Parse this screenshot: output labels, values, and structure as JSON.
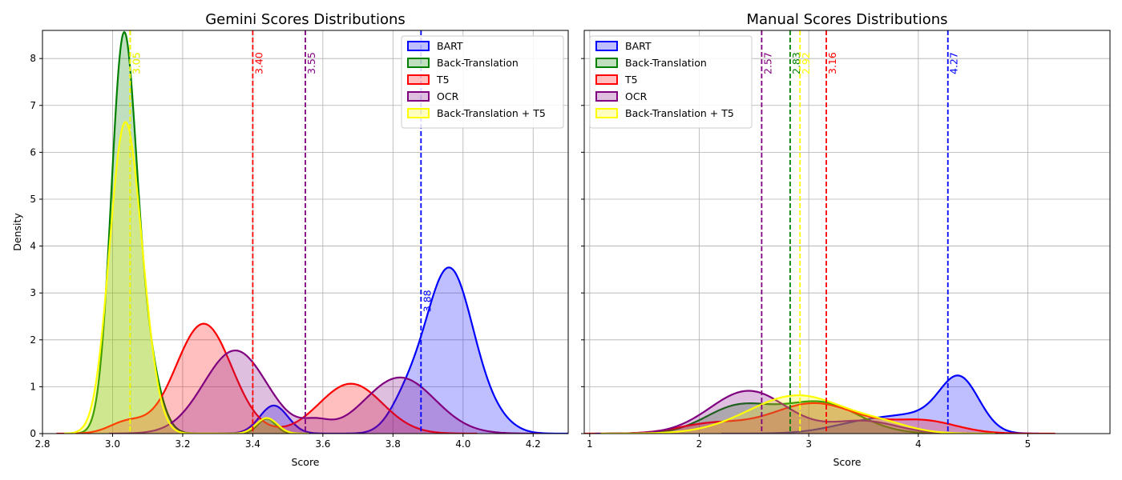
{
  "chart_data": [
    {
      "type": "area",
      "title": "Gemini Scores Distributions",
      "xlabel": "Score",
      "ylabel": "Density",
      "xlim": [
        2.8,
        4.3
      ],
      "ylim": [
        0,
        8.6
      ],
      "xticks": [
        2.8,
        3.0,
        3.2,
        3.4,
        3.6,
        3.8,
        4.0,
        4.2
      ],
      "xtick_labels": [
        "2.8",
        "3.0",
        "3.2",
        "3.4",
        "3.6",
        "3.8",
        "4.0",
        "4.2"
      ],
      "yticks": [
        0,
        1,
        2,
        3,
        4,
        5,
        6,
        7,
        8
      ],
      "ytick_labels": [
        "0",
        "1",
        "2",
        "3",
        "4",
        "5",
        "6",
        "7",
        "8"
      ],
      "grid": true,
      "legend_position": "upper-right",
      "series": [
        {
          "name": "BART",
          "color": "#0000ff",
          "mean": 3.88,
          "mean_label": "3.88",
          "components": [
            {
              "mu": 3.96,
              "sigma": 0.07,
              "w": 0.62
            },
            {
              "mu": 3.83,
              "sigma": 0.045,
              "w": 0.05
            },
            {
              "mu": 3.46,
              "sigma": 0.04,
              "w": 0.06
            },
            {
              "mu": 4.1,
              "sigma": 0.05,
              "w": 0.02
            }
          ]
        },
        {
          "name": "Back-Translation",
          "color": "#008000",
          "mean": 3.05,
          "mean_label": "3.05",
          "components": [
            {
              "mu": 3.03,
              "sigma": 0.035,
              "w": 0.7
            },
            {
              "mu": 3.09,
              "sigma": 0.04,
              "w": 0.17
            },
            {
              "mu": 3.44,
              "sigma": 0.025,
              "w": 0.02
            }
          ]
        },
        {
          "name": "T5",
          "color": "#ff0000",
          "mean": 3.4,
          "mean_label": "3.40",
          "components": [
            {
              "mu": 3.26,
              "sigma": 0.08,
              "w": 0.47
            },
            {
              "mu": 3.68,
              "sigma": 0.09,
              "w": 0.24
            },
            {
              "mu": 3.04,
              "sigma": 0.05,
              "w": 0.03
            }
          ]
        },
        {
          "name": "OCR",
          "color": "#800080",
          "mean": 3.55,
          "mean_label": "3.55",
          "components": [
            {
              "mu": 3.35,
              "sigma": 0.09,
              "w": 0.4
            },
            {
              "mu": 3.82,
              "sigma": 0.1,
              "w": 0.3
            },
            {
              "mu": 3.58,
              "sigma": 0.04,
              "w": 0.02
            }
          ]
        },
        {
          "name": "Back-Translation + T5",
          "color": "#ffff00",
          "mean": 3.05,
          "mean_label": "3.05",
          "components": [
            {
              "mu": 3.03,
              "sigma": 0.042,
              "w": 0.62
            },
            {
              "mu": 3.08,
              "sigma": 0.04,
              "w": 0.15
            },
            {
              "mu": 3.44,
              "sigma": 0.03,
              "w": 0.025
            }
          ]
        }
      ]
    },
    {
      "type": "area",
      "title": "Manual Scores Distributions",
      "xlabel": "Score",
      "xlim": [
        0.95,
        5.75
      ],
      "ylim": [
        0,
        8.6
      ],
      "xticks": [
        1,
        2,
        3,
        4,
        5
      ],
      "xtick_labels": [
        "1",
        "2",
        "3",
        "4",
        "5"
      ],
      "yticks": [
        0,
        1,
        2,
        3,
        4,
        5,
        6,
        7,
        8
      ],
      "grid": true,
      "legend_position": "upper-left",
      "series": [
        {
          "name": "BART",
          "color": "#0000ff",
          "mean": 4.27,
          "mean_label": "4.27",
          "components": [
            {
              "mu": 4.38,
              "sigma": 0.18,
              "w": 0.5
            },
            {
              "mu": 3.6,
              "sigma": 0.35,
              "w": 0.25
            },
            {
              "mu": 4.05,
              "sigma": 0.25,
              "w": 0.15
            }
          ]
        },
        {
          "name": "Back-Translation",
          "color": "#008000",
          "mean": 2.83,
          "mean_label": "2.83",
          "components": [
            {
              "mu": 2.35,
              "sigma": 0.3,
              "w": 0.42
            },
            {
              "mu": 3.1,
              "sigma": 0.35,
              "w": 0.58
            }
          ]
        },
        {
          "name": "T5",
          "color": "#ff0000",
          "mean": 3.16,
          "mean_label": "3.16",
          "components": [
            {
              "mu": 3.05,
              "sigma": 0.4,
              "w": 0.65
            },
            {
              "mu": 4.05,
              "sigma": 0.3,
              "w": 0.2
            },
            {
              "mu": 2.1,
              "sigma": 0.3,
              "w": 0.15
            }
          ]
        },
        {
          "name": "OCR",
          "color": "#800080",
          "mean": 2.57,
          "mean_label": "2.57",
          "components": [
            {
              "mu": 2.45,
              "sigma": 0.35,
              "w": 0.8
            },
            {
              "mu": 3.5,
              "sigma": 0.3,
              "w": 0.2
            }
          ]
        },
        {
          "name": "Back-Translation + T5",
          "color": "#ffff00",
          "mean": 2.92,
          "mean_label": "2.92",
          "components": [
            {
              "mu": 2.9,
              "sigma": 0.45,
              "w": 0.92
            },
            {
              "mu": 3.7,
              "sigma": 0.25,
              "w": 0.08
            }
          ]
        }
      ]
    }
  ]
}
